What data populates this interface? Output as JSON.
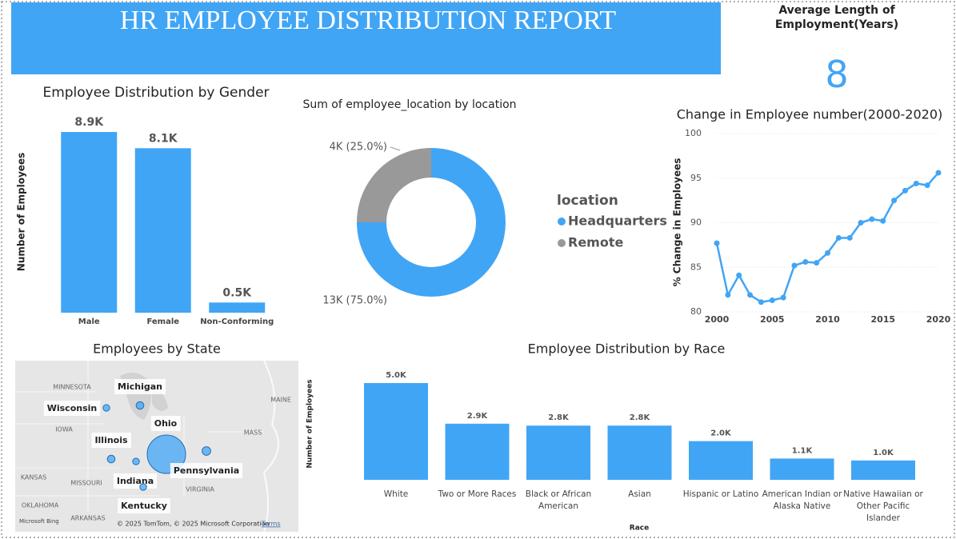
{
  "header": {
    "title": "HR EMPLOYEE DISTRIBUTION REPORT"
  },
  "kpi": {
    "label": "Average Length of Employment(Years)",
    "value": 8
  },
  "chart_data": [
    {
      "type": "bar",
      "title": "Employee Distribution by Gender",
      "y_label": "Number of Employees",
      "categories": [
        "Male",
        "Female",
        "Non-Conforming"
      ],
      "values": [
        8.9,
        8.1,
        0.5
      ],
      "value_labels": [
        "8.9K",
        "8.1K",
        "0.5K"
      ],
      "color": "#41a5f5",
      "ylim": [
        0,
        9
      ]
    },
    {
      "type": "pie",
      "title": "Sum of employee_location by location",
      "legend_title": "location",
      "categories": [
        "Headquarters",
        "Remote"
      ],
      "values": [
        75,
        25
      ],
      "value_labels": [
        "13K (75.0%)",
        "4K (25.0%)"
      ],
      "colors": [
        "#41a5f5",
        "#999999"
      ]
    },
    {
      "type": "line",
      "title": "Change in Employee number(2000-2020)",
      "y_label": "% Change in Employees",
      "x": [
        2000,
        2001,
        2002,
        2003,
        2004,
        2005,
        2006,
        2007,
        2008,
        2009,
        2010,
        2011,
        2012,
        2013,
        2014,
        2015,
        2016,
        2017,
        2018,
        2019,
        2020
      ],
      "values": [
        87.7,
        81.9,
        84.1,
        81.9,
        81.1,
        81.3,
        81.6,
        85.2,
        85.6,
        85.5,
        86.6,
        88.3,
        88.3,
        90.0,
        90.4,
        90.2,
        92.5,
        93.6,
        94.4,
        94.2,
        95.6
      ],
      "color": "#41a5f5",
      "xlim": [
        2000,
        2020
      ],
      "xticks": [
        2000,
        2005,
        2010,
        2015,
        2020
      ],
      "ylim": [
        80,
        100
      ],
      "yticks": [
        80,
        85,
        90,
        95,
        100
      ],
      "grid": true
    },
    {
      "type": "map",
      "title": "Employees by State",
      "categories": [
        "Michigan",
        "Wisconsin",
        "Ohio",
        "Illinois",
        "Indiana",
        "Pennsylvania",
        "Kentucky"
      ],
      "values": [
        400,
        300,
        10000,
        400,
        300,
        500,
        300
      ],
      "color": "#41a5f5",
      "background_labels": [
        "MINNESOTA",
        "IOWA",
        "KANSAS",
        "MISSOURI",
        "OKLAHOMA",
        "ARKANSAS",
        "MAINE",
        "MASS",
        "VIRGINIA"
      ],
      "logo": "Microsoft Bing",
      "attribution": "© 2025 TomTom, © 2025 Microsoft Corporation",
      "terms": "Terms"
    },
    {
      "type": "bar",
      "title": "Employee Distribution by Race",
      "x_label": "Race",
      "y_label": "Number of Employees",
      "categories": [
        "White",
        "Two or More Races",
        "Black or African American",
        "Asian",
        "Hispanic or Latino",
        "American Indian or Alaska Native",
        "Native Hawaiian or Other Pacific Islander"
      ],
      "values": [
        5.0,
        2.9,
        2.8,
        2.8,
        2.0,
        1.1,
        1.0
      ],
      "value_labels": [
        "5.0K",
        "2.9K",
        "2.8K",
        "2.8K",
        "2.0K",
        "1.1K",
        "1.0K"
      ],
      "color": "#41a5f5",
      "ylim": [
        0,
        5
      ]
    }
  ]
}
